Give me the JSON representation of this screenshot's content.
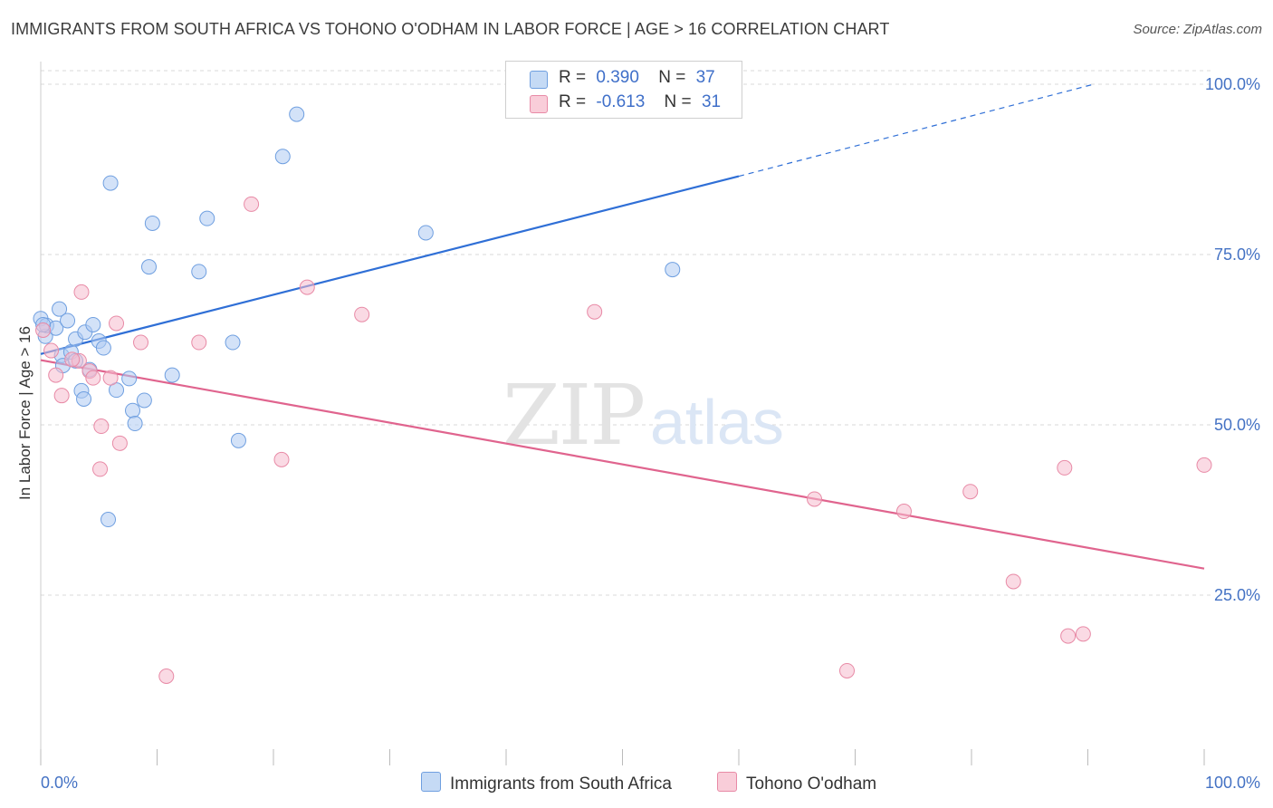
{
  "title": "IMMIGRANTS FROM SOUTH AFRICA VS TOHONO O'ODHAM IN LABOR FORCE | AGE > 16 CORRELATION CHART",
  "source": "Source: ZipAtlas.com",
  "watermark": {
    "zip": "ZIP",
    "atlas": "atlas"
  },
  "legend": {
    "series1": {
      "r_label": "R =",
      "r_value": "0.390",
      "n_label": "N =",
      "n_value": "37"
    },
    "series2": {
      "r_label": "R =",
      "r_value": "-0.613",
      "n_label": "N =",
      "n_value": "31"
    }
  },
  "colors": {
    "blue_fill": "#aecbf3",
    "blue_stroke": "#6f9fe0",
    "blue_line": "#2f6fd6",
    "pink_fill": "#f6bccd",
    "pink_stroke": "#e88aa6",
    "pink_line": "#e0648e",
    "tick_label": "#4472c4",
    "grid": "#d9d9d9"
  },
  "chart_data": {
    "type": "scatter",
    "title": "IMMIGRANTS FROM SOUTH AFRICA VS TOHONO O'ODHAM IN LABOR FORCE | AGE > 16 CORRELATION CHART",
    "xlabel": "",
    "ylabel": "In Labor Force | Age > 16",
    "xlim": [
      0,
      100
    ],
    "ylim": [
      0,
      102
    ],
    "x_tick_labels": [
      "0.0%",
      "100.0%"
    ],
    "y_ticks": [
      25,
      50,
      75,
      100
    ],
    "y_tick_labels": [
      "25.0%",
      "50.0%",
      "75.0%",
      "100.0%"
    ],
    "series": [
      {
        "name": "Immigrants from South Africa",
        "color": "blue",
        "points": [
          [
            0.0,
            65.6
          ],
          [
            0.4,
            63.0
          ],
          [
            0.5,
            64.6
          ],
          [
            1.3,
            64.2
          ],
          [
            1.6,
            67.0
          ],
          [
            1.8,
            60.2
          ],
          [
            1.9,
            58.7
          ],
          [
            2.3,
            65.3
          ],
          [
            2.6,
            60.7
          ],
          [
            3.0,
            62.6
          ],
          [
            3.5,
            55.0
          ],
          [
            3.7,
            53.8
          ],
          [
            3.8,
            63.6
          ],
          [
            4.2,
            58.1
          ],
          [
            4.5,
            64.7
          ],
          [
            5.0,
            62.3
          ],
          [
            5.4,
            61.3
          ],
          [
            5.8,
            36.1
          ],
          [
            6.0,
            85.5
          ],
          [
            6.5,
            55.1
          ],
          [
            7.6,
            56.8
          ],
          [
            7.9,
            52.1
          ],
          [
            8.1,
            50.2
          ],
          [
            8.9,
            53.6
          ],
          [
            9.3,
            73.2
          ],
          [
            9.6,
            79.6
          ],
          [
            11.3,
            57.3
          ],
          [
            13.6,
            72.5
          ],
          [
            14.3,
            80.3
          ],
          [
            16.5,
            62.1
          ],
          [
            17.0,
            47.7
          ],
          [
            20.8,
            89.4
          ],
          [
            22.0,
            95.6
          ],
          [
            33.1,
            78.2
          ],
          [
            54.3,
            72.8
          ],
          [
            0.2,
            64.7
          ],
          [
            3.0,
            59.4
          ]
        ],
        "trend": {
          "x_start": 0,
          "y_start": 60.4,
          "x_solid_end": 60,
          "y_solid_end": 86.5,
          "x_dash_end": 90.5,
          "y_dash_end": 100
        }
      },
      {
        "name": "Tohono O'odham",
        "color": "pink",
        "points": [
          [
            0.2,
            63.9
          ],
          [
            0.9,
            60.9
          ],
          [
            1.3,
            57.3
          ],
          [
            1.8,
            54.3
          ],
          [
            3.3,
            59.4
          ],
          [
            3.5,
            69.5
          ],
          [
            4.2,
            57.9
          ],
          [
            4.5,
            56.9
          ],
          [
            5.1,
            43.5
          ],
          [
            5.2,
            49.8
          ],
          [
            6.0,
            56.9
          ],
          [
            6.5,
            64.9
          ],
          [
            6.8,
            47.3
          ],
          [
            8.6,
            62.1
          ],
          [
            10.8,
            13.1
          ],
          [
            13.6,
            62.1
          ],
          [
            18.1,
            82.4
          ],
          [
            20.7,
            44.9
          ],
          [
            22.9,
            70.2
          ],
          [
            27.6,
            66.2
          ],
          [
            47.6,
            66.6
          ],
          [
            66.5,
            39.1
          ],
          [
            69.3,
            13.9
          ],
          [
            74.2,
            37.3
          ],
          [
            79.9,
            40.2
          ],
          [
            83.6,
            27.0
          ],
          [
            88.0,
            43.7
          ],
          [
            88.3,
            19.0
          ],
          [
            89.6,
            19.3
          ],
          [
            100.0,
            44.1
          ],
          [
            2.7,
            59.6
          ]
        ],
        "trend": {
          "x_start": 0,
          "y_start": 59.5,
          "x_end": 100,
          "y_end": 28.9
        }
      }
    ]
  }
}
